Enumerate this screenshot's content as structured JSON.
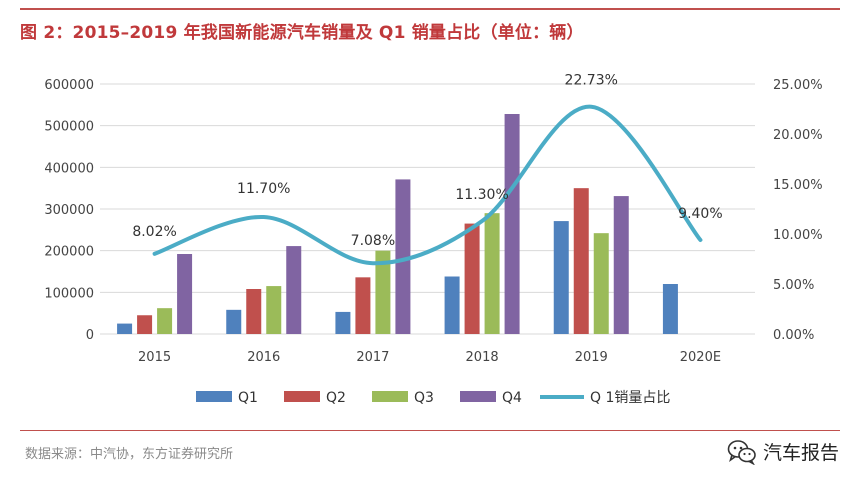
{
  "header": {
    "title": "图 2：2015–2019 年我国新能源汽车销量及 Q1 销量占比（单位：辆）"
  },
  "footer": {
    "source": "数据来源：中汽协，东方证券研究所",
    "brand": "汽车报告",
    "brand_icon": "wechat-icon"
  },
  "colors": {
    "accent": "#c0504d",
    "q1": "#4f81bd",
    "q2": "#c0504d",
    "q3": "#9bbb59",
    "q4": "#8064a2",
    "ratio": "#4bacc6"
  },
  "chart_data": {
    "type": "bar",
    "categories": [
      "2015",
      "2016",
      "2017",
      "2018",
      "2019",
      "2020E"
    ],
    "series": [
      {
        "name": "Q1",
        "values": [
          25000,
          58000,
          53000,
          138000,
          271000,
          120000
        ]
      },
      {
        "name": "Q2",
        "values": [
          45000,
          108000,
          136000,
          265000,
          350000,
          null
        ]
      },
      {
        "name": "Q3",
        "values": [
          62000,
          115000,
          200000,
          290000,
          242000,
          null
        ]
      },
      {
        "name": "Q4",
        "values": [
          192000,
          211000,
          371000,
          528000,
          331000,
          null
        ]
      }
    ],
    "line_series": {
      "name": "Q 1销量占比",
      "values": [
        8.02,
        11.7,
        7.08,
        11.3,
        22.73,
        9.4
      ],
      "labels": [
        "8.02%",
        "11.70%",
        "7.08%",
        "11.30%",
        "22.73%",
        "9.40%"
      ]
    },
    "y_left": {
      "ylim": [
        0,
        600000
      ],
      "ticks": [
        "0",
        "100000",
        "200000",
        "300000",
        "400000",
        "500000",
        "600000"
      ]
    },
    "y_right": {
      "ylim": [
        0,
        25
      ],
      "ticks": [
        "0.00%",
        "5.00%",
        "10.00%",
        "15.00%",
        "20.00%",
        "25.00%"
      ]
    },
    "grid": true,
    "legend_position": "bottom"
  }
}
